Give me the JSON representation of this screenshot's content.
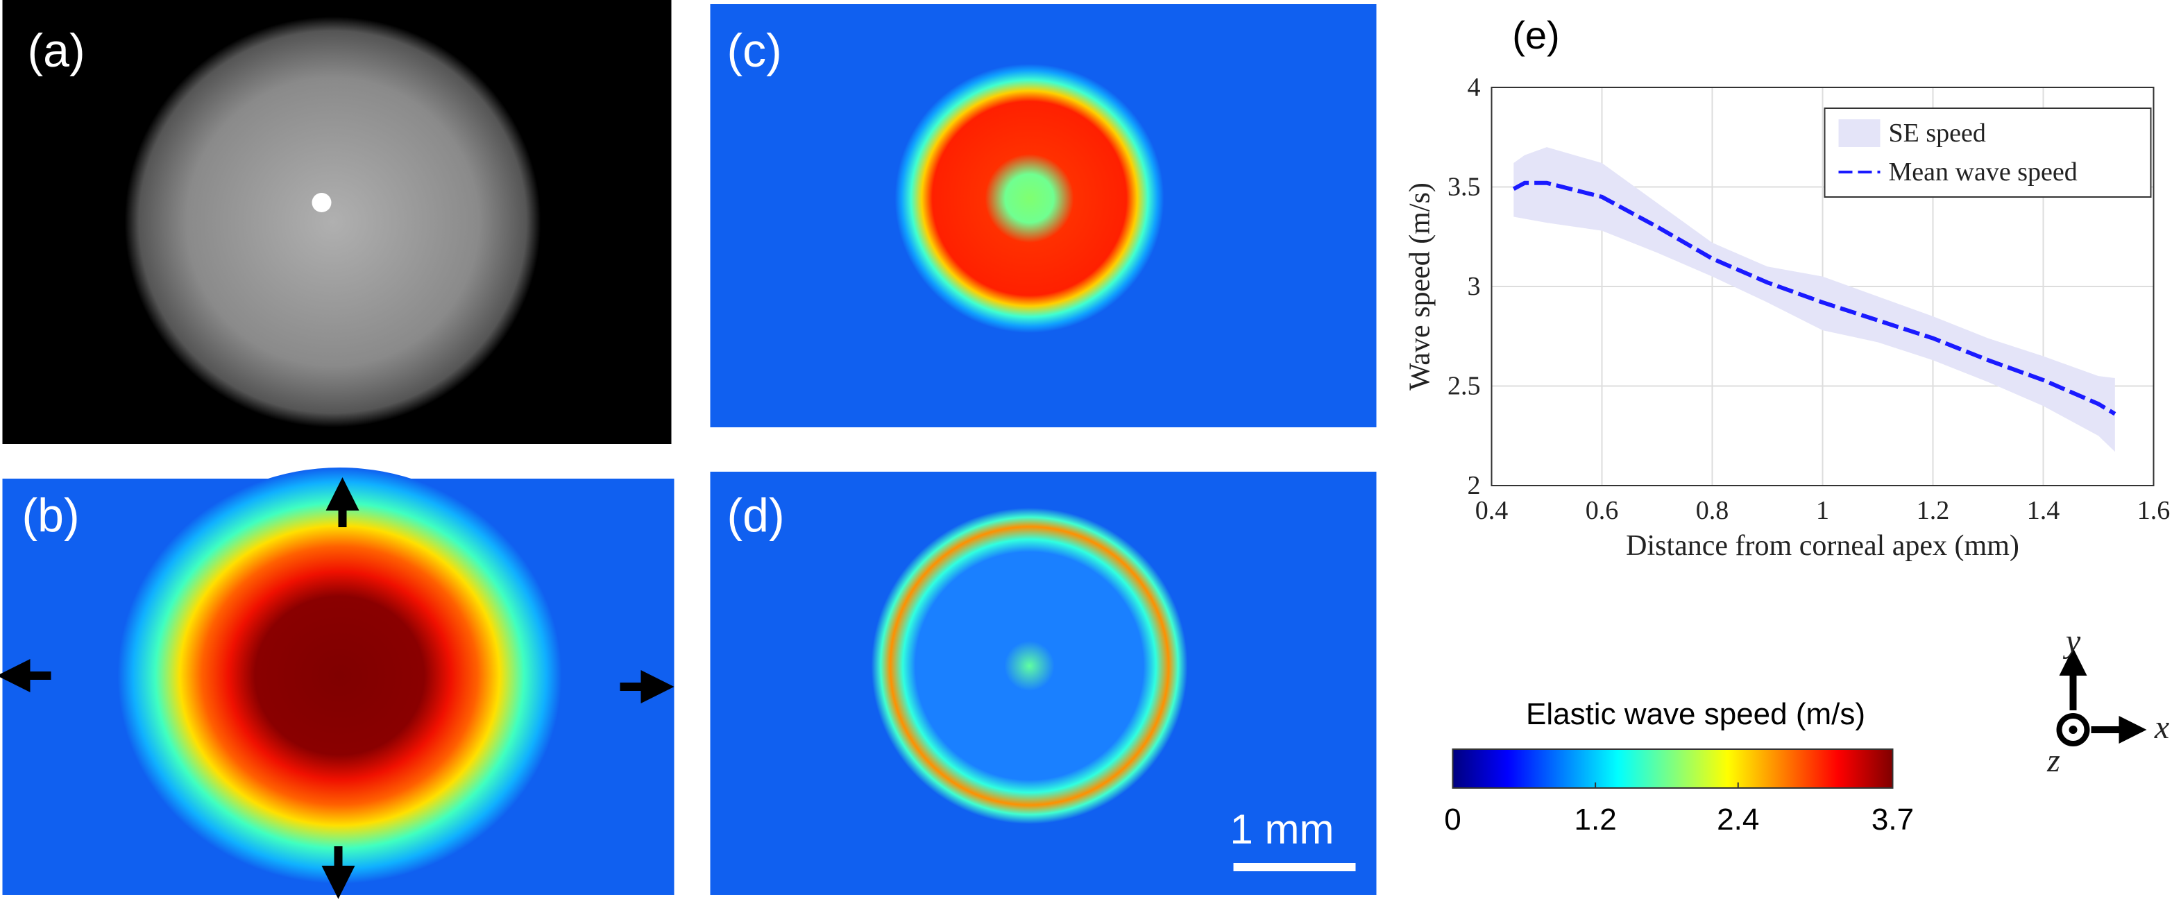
{
  "panels": {
    "a": {
      "label": "(a)"
    },
    "b": {
      "label": "(b)"
    },
    "c": {
      "label": "(c)"
    },
    "d": {
      "label": "(d)",
      "scale_bar": "1 mm"
    }
  },
  "chart_data": {
    "type": "line",
    "panel_label": "(e)",
    "x_label": "Distance from corneal apex (mm)",
    "y_label": "Wave speed (m/s)",
    "x": [
      0.44,
      0.46,
      0.5,
      0.6,
      0.7,
      0.8,
      0.9,
      1.0,
      1.1,
      1.2,
      1.3,
      1.4,
      1.5,
      1.53
    ],
    "series": [
      {
        "name": "SE speed",
        "color": "#e4e4f8",
        "upper": [
          3.62,
          3.66,
          3.7,
          3.62,
          3.42,
          3.22,
          3.1,
          3.05,
          2.95,
          2.85,
          2.74,
          2.65,
          2.55,
          2.54
        ],
        "lower": [
          3.35,
          3.34,
          3.32,
          3.28,
          3.17,
          3.05,
          2.92,
          2.78,
          2.72,
          2.63,
          2.52,
          2.4,
          2.25,
          2.17
        ]
      },
      {
        "name": "Mean wave speed",
        "color": "#1a1aff",
        "linestyle": "dashed",
        "values": [
          3.49,
          3.52,
          3.52,
          3.45,
          3.3,
          3.14,
          3.02,
          2.92,
          2.83,
          2.74,
          2.63,
          2.53,
          2.41,
          2.36
        ]
      }
    ],
    "xlim": [
      0.4,
      1.6
    ],
    "xticks": [
      0.4,
      0.6,
      0.8,
      1,
      1.2,
      1.4,
      1.6
    ],
    "ylim": [
      2,
      4
    ],
    "yticks": [
      2,
      2.5,
      3,
      3.5,
      4
    ],
    "grid": true,
    "legend": "upper right"
  },
  "colorbar": {
    "title": "Elastic wave speed (m/s)",
    "lim": [
      0,
      3.7
    ],
    "ticks": [
      0,
      1.2,
      2.4,
      3.7
    ]
  },
  "axes_triad": {
    "x": "x",
    "y": "y",
    "z": "z"
  }
}
